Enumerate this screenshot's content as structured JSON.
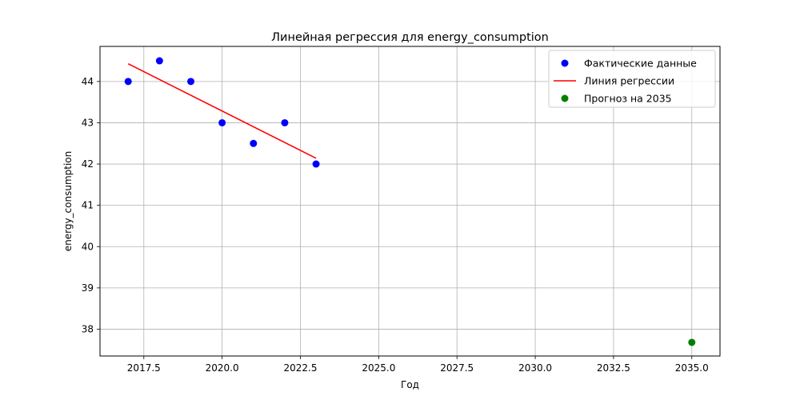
{
  "chart_data": {
    "type": "scatter",
    "title": "Линейная регрессия для energy_consumption",
    "xlabel": "Год",
    "ylabel": "energy_consumption",
    "xlim": [
      2016.1,
      2035.9
    ],
    "ylim": [
      37.35,
      44.85
    ],
    "x_ticks": [
      2017.5,
      2020.0,
      2022.5,
      2025.0,
      2027.5,
      2030.0,
      2032.5,
      2035.0
    ],
    "x_tick_labels": [
      "2017.5",
      "2020.0",
      "2022.5",
      "2025.0",
      "2027.5",
      "2030.0",
      "2032.5",
      "2035.0"
    ],
    "y_ticks": [
      38,
      39,
      40,
      41,
      42,
      43,
      44
    ],
    "y_tick_labels": [
      "38",
      "39",
      "40",
      "41",
      "42",
      "43",
      "44"
    ],
    "grid": true,
    "legend_position": "top-right",
    "series": [
      {
        "name": "Фактические данные",
        "kind": "scatter",
        "color": "#0000ff",
        "x": [
          2017,
          2018,
          2019,
          2020,
          2021,
          2022,
          2023
        ],
        "y": [
          44.0,
          44.5,
          44.0,
          43.0,
          42.5,
          43.0,
          42.0
        ]
      },
      {
        "name": "Линия регрессии",
        "kind": "line",
        "color": "#ff0000",
        "x": [
          2017,
          2023
        ],
        "y": [
          44.43,
          42.14
        ]
      },
      {
        "name": "Прогноз на 2035",
        "kind": "scatter",
        "color": "#008000",
        "x": [
          2035
        ],
        "y": [
          37.68
        ]
      }
    ]
  }
}
